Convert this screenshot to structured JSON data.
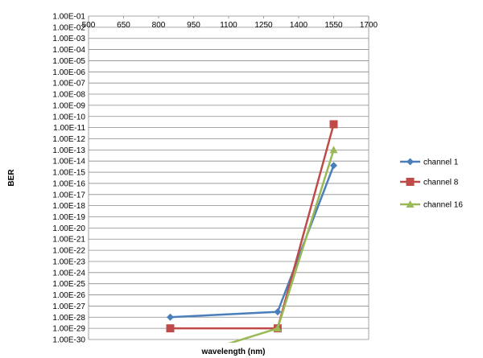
{
  "chart_data": {
    "type": "line",
    "title": "",
    "xlabel": "wavelength (nm)",
    "ylabel": "BER",
    "x_ticks": [
      "500",
      "650",
      "800",
      "950",
      "1100",
      "1250",
      "1400",
      "1550",
      "1700"
    ],
    "xlim": [
      500,
      1700
    ],
    "y_scale": "log",
    "y_ticks": [
      "1.00E-01",
      "1.00E-02",
      "1.00E-03",
      "1.00E-04",
      "1.00E-05",
      "1.00E-06",
      "1.00E-07",
      "1.00E-08",
      "1.00E-09",
      "1.00E-10",
      "1.00E-11",
      "1.00E-12",
      "1.00E-13",
      "1.00E-14",
      "1.00E-15",
      "1.00E-16",
      "1.00E-17",
      "1.00E-18",
      "1.00E-19",
      "1.00E-20",
      "1.00E-21",
      "1.00E-22",
      "1.00E-23",
      "1.00E-24",
      "1.00E-25",
      "1.00E-26",
      "1.00E-27",
      "1.00E-28",
      "1.00E-29",
      "1.00E-30"
    ],
    "ylim": [
      1e-30,
      0.1
    ],
    "grid": true,
    "legend_position": "right",
    "series": [
      {
        "name": "channel 1",
        "color": "#4a7ebb",
        "marker": "diamond",
        "x": [
          850,
          1310,
          1550
        ],
        "y": [
          1e-28,
          3e-28,
          4e-15
        ]
      },
      {
        "name": "channel 8",
        "color": "#be4b48",
        "marker": "square",
        "x": [
          850,
          1310,
          1550
        ],
        "y": [
          1e-29,
          1e-29,
          2e-11
        ]
      },
      {
        "name": "channel 16",
        "color": "#98b954",
        "marker": "triangle",
        "x": [
          850,
          1310,
          1550
        ],
        "y": [
          1e-32,
          1e-29,
          1e-13
        ]
      }
    ]
  }
}
